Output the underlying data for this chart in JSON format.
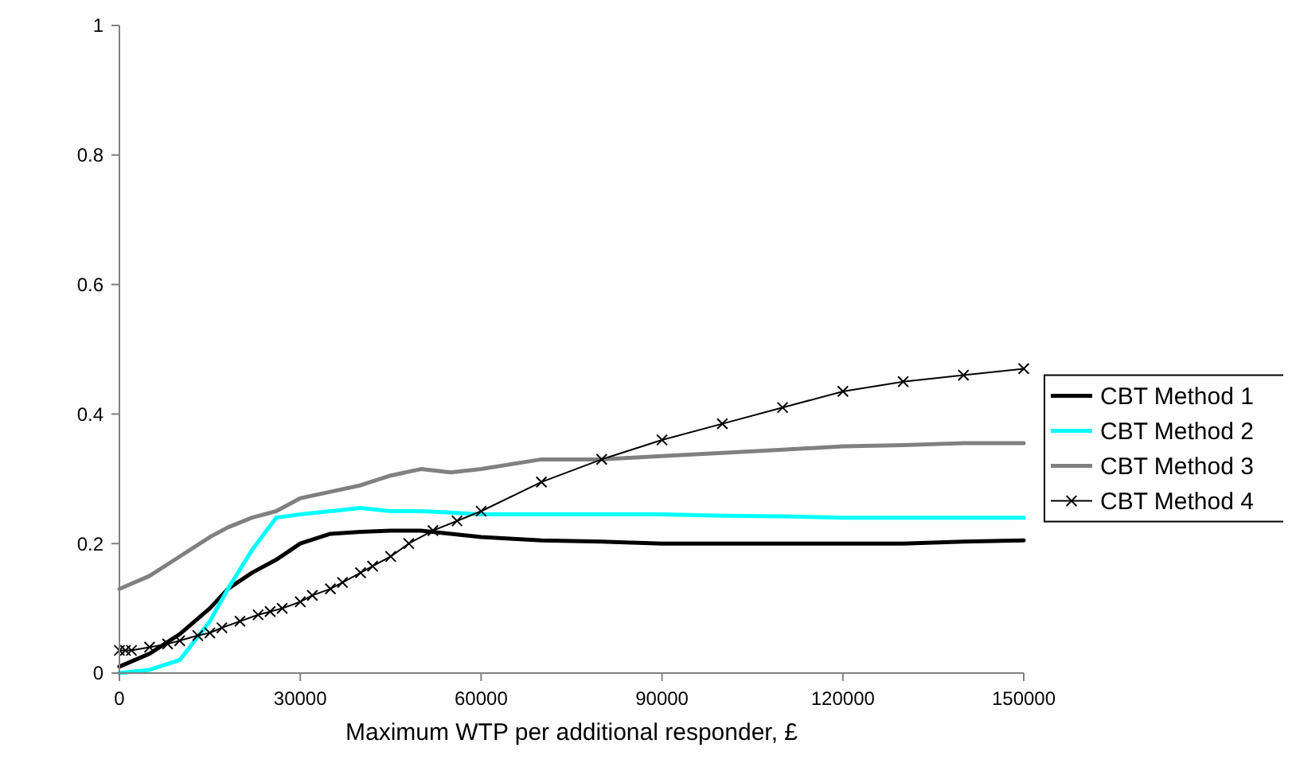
{
  "chart_data": {
    "type": "line",
    "xlabel": "Maximum WTP per additional responder, £",
    "xlim": [
      0,
      150000
    ],
    "xticks": [
      0,
      30000,
      60000,
      90000,
      120000,
      150000
    ],
    "ylim": [
      0,
      1
    ],
    "yticks": [
      0,
      0.2,
      0.4,
      0.6,
      0.8,
      1
    ],
    "grid": false,
    "legend": "right",
    "x": [
      0,
      5000,
      10000,
      15000,
      18000,
      22000,
      26000,
      30000,
      35000,
      40000,
      45000,
      50000,
      55000,
      60000,
      70000,
      80000,
      90000,
      100000,
      110000,
      120000,
      130000,
      140000,
      150000
    ],
    "series": [
      {
        "name": "CBT Method 1",
        "color": "#000000",
        "values": [
          0.01,
          0.03,
          0.06,
          0.1,
          0.13,
          0.155,
          0.175,
          0.2,
          0.215,
          0.218,
          0.22,
          0.22,
          0.215,
          0.21,
          0.205,
          0.203,
          0.2,
          0.2,
          0.2,
          0.2,
          0.2,
          0.203,
          0.205
        ]
      },
      {
        "name": "CBT Method 2",
        "color": "#00ffff",
        "values": [
          0.0,
          0.005,
          0.02,
          0.08,
          0.13,
          0.19,
          0.24,
          0.245,
          0.25,
          0.255,
          0.25,
          0.25,
          0.248,
          0.245,
          0.245,
          0.245,
          0.245,
          0.243,
          0.242,
          0.24,
          0.24,
          0.24,
          0.24
        ]
      },
      {
        "name": "CBT Method 3",
        "color": "#808080",
        "values": [
          0.13,
          0.15,
          0.18,
          0.21,
          0.225,
          0.24,
          0.25,
          0.27,
          0.28,
          0.29,
          0.305,
          0.315,
          0.31,
          0.315,
          0.33,
          0.33,
          0.335,
          0.34,
          0.345,
          0.35,
          0.352,
          0.355,
          0.355
        ]
      },
      {
        "name": "CBT Method 4",
        "color": "#000000",
        "marker": "cross",
        "x": [
          0,
          1000,
          2000,
          5000,
          8000,
          10000,
          13000,
          15000,
          17000,
          20000,
          23000,
          25000,
          27000,
          30000,
          32000,
          35000,
          37000,
          40000,
          42000,
          45000,
          48000,
          52000,
          56000,
          60000,
          70000,
          80000,
          90000,
          100000,
          110000,
          120000,
          130000,
          140000,
          150000
        ],
        "values": [
          0.035,
          0.035,
          0.035,
          0.04,
          0.045,
          0.05,
          0.058,
          0.062,
          0.07,
          0.08,
          0.09,
          0.095,
          0.1,
          0.11,
          0.12,
          0.13,
          0.14,
          0.155,
          0.165,
          0.18,
          0.2,
          0.22,
          0.235,
          0.25,
          0.295,
          0.33,
          0.36,
          0.385,
          0.41,
          0.435,
          0.45,
          0.46,
          0.47
        ]
      }
    ]
  }
}
